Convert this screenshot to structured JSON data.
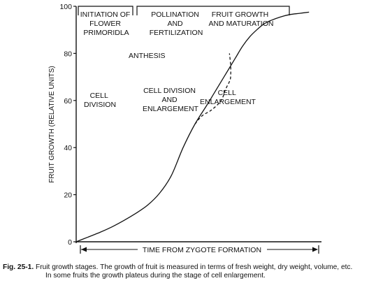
{
  "chart_data": {
    "type": "line",
    "title": "",
    "xlabel": "TIME FROM ZYGOTE FORMATION",
    "ylabel": "FRUIT GROWTH (RELATIVE UNITS)",
    "ylim": [
      0,
      100
    ],
    "xlim": [
      0,
      100
    ],
    "y_ticks": [
      "0",
      "20",
      "40",
      "60",
      "80",
      "100"
    ],
    "grid": false,
    "series": [
      {
        "style": "solid",
        "x": [
          0,
          5,
          10,
          15,
          20,
          25,
          30,
          35,
          40,
          45,
          50,
          55,
          58,
          61,
          64,
          67,
          70,
          73,
          76,
          79,
          82,
          86,
          90,
          94,
          98
        ],
        "y": [
          0,
          2,
          4,
          6.3,
          9,
          12,
          15.5,
          20.5,
          28,
          40,
          50,
          58,
          63,
          68,
          73,
          78,
          83,
          87,
          90,
          92.5,
          94,
          95.5,
          96.5,
          97,
          97.5
        ]
      },
      {
        "style": "dashed",
        "x": [
          50,
          53,
          57,
          61,
          63,
          64.5,
          65,
          65,
          64.5
        ],
        "y": [
          50,
          53.5,
          56,
          60,
          65,
          68,
          70,
          75,
          80
        ]
      }
    ],
    "annotations": {
      "initiation": [
        "INITIATION OF",
        "FLOWER",
        "PRIMORIDLA"
      ],
      "pollination": [
        "POLLINATION",
        "AND",
        "FERTILIZATION"
      ],
      "maturation": [
        "FRUIT GROWTH",
        "AND MATURATION"
      ],
      "anthesis": "ANTHESIS",
      "cell_division": [
        "CELL",
        "DIVISION"
      ],
      "div_enlarge": [
        "CELL DIVISION",
        "AND",
        "ENLARGEMENT"
      ],
      "cell_enlarge": [
        "CELL",
        "ENLARGEMENT"
      ]
    }
  },
  "caption": {
    "label": "Fig. 25-1.",
    "line1": "Fruit growth stages. The growth of fruit is measured in terms of fresh weight, dry weight, volume, etc.",
    "line2": "In some fruits the growth plateus during the stage of cell enlargement."
  }
}
